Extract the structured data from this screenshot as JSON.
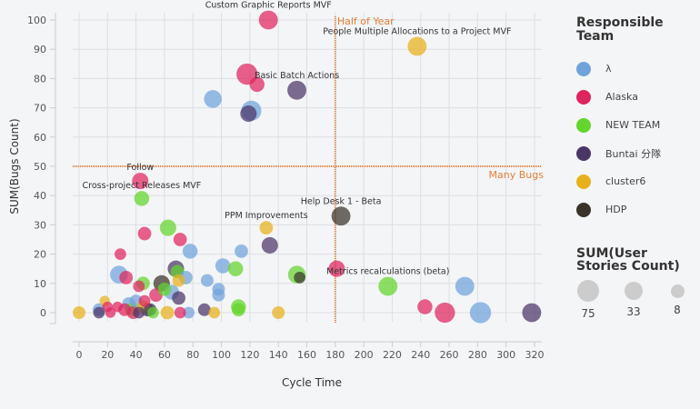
{
  "chart_data": {
    "type": "scatter",
    "subtype": "bubble",
    "title": "",
    "xlabel": "Cycle Time",
    "ylabel": "SUM(Bugs Count)",
    "xlim": [
      -5,
      325
    ],
    "ylim": [
      -5,
      103
    ],
    "xticks": [
      0,
      20,
      40,
      60,
      80,
      100,
      120,
      140,
      160,
      180,
      200,
      220,
      240,
      260,
      280,
      300,
      320
    ],
    "yticks": [
      0,
      10,
      20,
      30,
      40,
      50,
      60,
      70,
      80,
      90,
      100
    ],
    "grid": true,
    "reference_lines": [
      {
        "axis": "x",
        "value": 180,
        "label": "Half of Year",
        "color": "#e8803a"
      },
      {
        "axis": "y",
        "value": 50,
        "label": "Many Bugs",
        "color": "#e8803a"
      }
    ],
    "legend": {
      "title": "Responsible Team",
      "placement": "right",
      "entries": [
        {
          "name": "λ",
          "color": "#6fa3db"
        },
        {
          "name": "Alaska",
          "color": "#e0245e"
        },
        {
          "name": "NEW TEAM",
          "color": "#62d62a"
        },
        {
          "name": "Buntai 分隊",
          "color": "#4b3566"
        },
        {
          "name": "cluster6",
          "color": "#e8b11a"
        },
        {
          "name": "HDP",
          "color": "#3a3328"
        }
      ]
    },
    "size_legend": {
      "title": "SUM(User Stories Count)",
      "values": [
        75,
        33,
        8
      ]
    },
    "points": [
      {
        "x": 133,
        "y": 100,
        "size": 40,
        "team": "Alaska",
        "label": "Custom Graphic Reports MVF"
      },
      {
        "x": 237.5,
        "y": 91,
        "size": 40,
        "team": "cluster6",
        "label": "People Multiple Allocations to a Project MVF"
      },
      {
        "x": 118,
        "y": 81.5,
        "size": 50,
        "team": "Alaska"
      },
      {
        "x": 125,
        "y": 78,
        "size": 25,
        "team": "Alaska"
      },
      {
        "x": 153,
        "y": 76,
        "size": 40,
        "team": "Buntai 分隊",
        "label": "Basic Batch Actions"
      },
      {
        "x": 94,
        "y": 73,
        "size": 35,
        "team": "λ"
      },
      {
        "x": 121,
        "y": 69,
        "size": 45,
        "team": "λ"
      },
      {
        "x": 119,
        "y": 68,
        "size": 30,
        "team": "Buntai 分隊"
      },
      {
        "x": 43,
        "y": 45,
        "size": 30,
        "team": "Alaska",
        "label": "Follow"
      },
      {
        "x": 44,
        "y": 39,
        "size": 25,
        "team": "NEW TEAM",
        "label": "Cross-project Releases MVF"
      },
      {
        "x": 184,
        "y": 33,
        "size": 40,
        "team": "HDP",
        "label": "Help Desk 1 - Beta"
      },
      {
        "x": 131.5,
        "y": 29,
        "size": 20,
        "team": "cluster6",
        "label": "PPM Improvements"
      },
      {
        "x": 134,
        "y": 23,
        "size": 30,
        "team": "Buntai 分隊"
      },
      {
        "x": 62.5,
        "y": 29,
        "size": 30,
        "team": "NEW TEAM"
      },
      {
        "x": 46,
        "y": 27,
        "size": 20,
        "team": "Alaska"
      },
      {
        "x": 71,
        "y": 25,
        "size": 20,
        "team": "Alaska"
      },
      {
        "x": 78,
        "y": 21,
        "size": 25,
        "team": "λ"
      },
      {
        "x": 29,
        "y": 20,
        "size": 15,
        "team": "Alaska"
      },
      {
        "x": 114,
        "y": 21,
        "size": 20,
        "team": "λ"
      },
      {
        "x": 181,
        "y": 15,
        "size": 30,
        "team": "Alaska"
      },
      {
        "x": 153,
        "y": 13,
        "size": 35,
        "team": "NEW TEAM"
      },
      {
        "x": 155,
        "y": 12,
        "size": 15,
        "team": "HDP"
      },
      {
        "x": 217,
        "y": 9,
        "size": 40,
        "team": "NEW TEAM",
        "label": "Metrics recalculations (beta)"
      },
      {
        "x": 271,
        "y": 9,
        "size": 40,
        "team": "λ"
      },
      {
        "x": 243,
        "y": 2,
        "size": 25,
        "team": "Alaska"
      },
      {
        "x": 257,
        "y": 0,
        "size": 45,
        "team": "Alaska"
      },
      {
        "x": 282,
        "y": 0,
        "size": 50,
        "team": "λ"
      },
      {
        "x": 318,
        "y": 0,
        "size": 40,
        "team": "Buntai 分隊"
      },
      {
        "x": 28,
        "y": 13,
        "size": 35,
        "team": "λ"
      },
      {
        "x": 33,
        "y": 12,
        "size": 20,
        "team": "Alaska"
      },
      {
        "x": 45,
        "y": 10,
        "size": 20,
        "team": "NEW TEAM"
      },
      {
        "x": 42,
        "y": 9,
        "size": 15,
        "team": "Alaska"
      },
      {
        "x": 54,
        "y": 6,
        "size": 20,
        "team": "Alaska"
      },
      {
        "x": 58,
        "y": 10,
        "size": 30,
        "team": "HDP"
      },
      {
        "x": 60,
        "y": 8,
        "size": 20,
        "team": "NEW TEAM"
      },
      {
        "x": 65,
        "y": 7,
        "size": 25,
        "team": "λ"
      },
      {
        "x": 68,
        "y": 15,
        "size": 30,
        "team": "Buntai 分隊"
      },
      {
        "x": 69,
        "y": 14,
        "size": 20,
        "team": "NEW TEAM"
      },
      {
        "x": 70,
        "y": 11,
        "size": 18,
        "team": "cluster6"
      },
      {
        "x": 75,
        "y": 12,
        "size": 20,
        "team": "λ"
      },
      {
        "x": 70,
        "y": 5,
        "size": 20,
        "team": "Buntai 分隊"
      },
      {
        "x": 90,
        "y": 11,
        "size": 18,
        "team": "λ"
      },
      {
        "x": 98,
        "y": 8,
        "size": 18,
        "team": "λ"
      },
      {
        "x": 98,
        "y": 6,
        "size": 18,
        "team": "λ"
      },
      {
        "x": 101,
        "y": 16,
        "size": 25,
        "team": "λ"
      },
      {
        "x": 110,
        "y": 15,
        "size": 25,
        "team": "NEW TEAM"
      },
      {
        "x": 112,
        "y": 2,
        "size": 25,
        "team": "NEW TEAM"
      },
      {
        "x": 112,
        "y": 1,
        "size": 20,
        "team": "NEW TEAM"
      },
      {
        "x": 140,
        "y": 0,
        "size": 18,
        "team": "cluster6"
      },
      {
        "x": 95,
        "y": 0,
        "size": 15,
        "team": "cluster6"
      },
      {
        "x": 88,
        "y": 1,
        "size": 18,
        "team": "Buntai 分隊"
      },
      {
        "x": 77,
        "y": 0,
        "size": 15,
        "team": "λ"
      },
      {
        "x": 71,
        "y": 0,
        "size": 15,
        "team": "Alaska"
      },
      {
        "x": 62,
        "y": 0,
        "size": 20,
        "team": "cluster6"
      },
      {
        "x": 0,
        "y": 0,
        "size": 18,
        "team": "cluster6"
      },
      {
        "x": 14,
        "y": 1,
        "size": 18,
        "team": "λ"
      },
      {
        "x": 14,
        "y": 0,
        "size": 15,
        "team": "Buntai 分隊"
      },
      {
        "x": 18,
        "y": 4,
        "size": 12,
        "team": "cluster6"
      },
      {
        "x": 20,
        "y": 2,
        "size": 12,
        "team": "Alaska"
      },
      {
        "x": 22,
        "y": 0,
        "size": 12,
        "team": "Alaska"
      },
      {
        "x": 27,
        "y": 2,
        "size": 12,
        "team": "Alaska"
      },
      {
        "x": 32,
        "y": 1,
        "size": 18,
        "team": "Alaska"
      },
      {
        "x": 35,
        "y": 3,
        "size": 20,
        "team": "λ"
      },
      {
        "x": 37,
        "y": 1,
        "size": 20,
        "team": "NEW TEAM"
      },
      {
        "x": 38,
        "y": 0,
        "size": 18,
        "team": "Alaska"
      },
      {
        "x": 40,
        "y": 4,
        "size": 18,
        "team": "λ"
      },
      {
        "x": 42,
        "y": 0,
        "size": 15,
        "team": "Buntai 分隊"
      },
      {
        "x": 45,
        "y": 2,
        "size": 18,
        "team": "cluster6"
      },
      {
        "x": 46,
        "y": 4,
        "size": 15,
        "team": "Alaska"
      },
      {
        "x": 48,
        "y": 1,
        "size": 20,
        "team": "Buntai 分隊"
      },
      {
        "x": 50,
        "y": 1,
        "size": 18,
        "team": "Buntai 分隊"
      },
      {
        "x": 52,
        "y": 0,
        "size": 15,
        "team": "NEW TEAM"
      }
    ]
  }
}
